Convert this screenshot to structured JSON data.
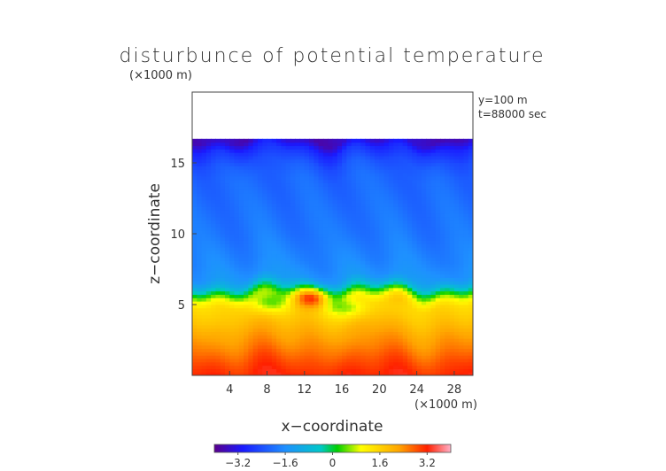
{
  "chart_data": {
    "type": "heatmap",
    "title": "disturbunce of potential temperature",
    "x_label": "x−coordinate",
    "y_label": "z−coordinate",
    "x_unit_label": "(×1000 m)",
    "y_unit_label": "(×1000 m)",
    "annotations": [
      "y=100 m",
      "t=88000 sec"
    ],
    "x_range": [
      0,
      30
    ],
    "y_range": [
      0,
      20
    ],
    "x_ticks": [
      "4",
      "8",
      "12",
      "16",
      "20",
      "24",
      "28"
    ],
    "x_tick_values": [
      4,
      8,
      12,
      16,
      20,
      24,
      28
    ],
    "y_ticks": [
      "5",
      "10",
      "15"
    ],
    "y_tick_values": [
      5,
      10,
      15
    ],
    "data_top_z": 16.7,
    "colorbar": {
      "min": -4.0,
      "max": 4.0,
      "tick_labels": [
        "−3.2",
        "−1.6",
        "0",
        "1.6",
        "3.2"
      ],
      "tick_values": [
        -3.2,
        -1.6,
        0,
        1.6,
        3.2
      ]
    },
    "field_profile": {
      "z": [
        0,
        1,
        2,
        3,
        4,
        5,
        5.5,
        6,
        6.5,
        7,
        8,
        9,
        10,
        12,
        14,
        15,
        16,
        16.7
      ],
      "value": [
        3.2,
        2.9,
        2.5,
        2.2,
        1.8,
        1.5,
        1.0,
        0.0,
        -1.0,
        -1.5,
        -1.7,
        -1.8,
        -1.9,
        -2.0,
        -2.1,
        -2.3,
        -2.8,
        -3.6
      ]
    },
    "anomalies": [
      {
        "x": 13,
        "z": 5.6,
        "value": 3.0
      },
      {
        "x": 22.5,
        "z": 5.8,
        "value": 0.9
      },
      {
        "x": 8.5,
        "z": 5.2,
        "value": 0.2
      },
      {
        "x": 16.5,
        "z": 4.8,
        "value": 0.6
      }
    ]
  }
}
